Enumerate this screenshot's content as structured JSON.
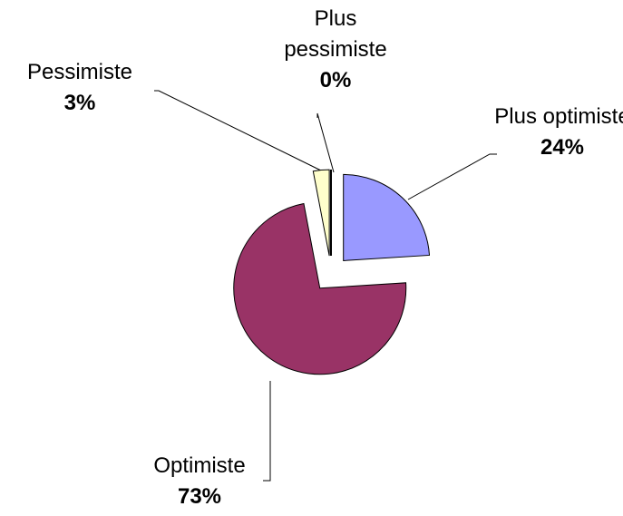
{
  "chart_data": {
    "type": "pie",
    "categories": [
      "Plus optimiste",
      "Optimiste",
      "Pessimiste",
      "Plus pessimiste"
    ],
    "values": [
      24,
      73,
      3,
      0
    ],
    "value_labels": [
      "24%",
      "73%",
      "3%",
      "0%"
    ],
    "colors": [
      "#9999ff",
      "#993366",
      "#ffffcc",
      "#ccffff"
    ],
    "exploded": true
  }
}
